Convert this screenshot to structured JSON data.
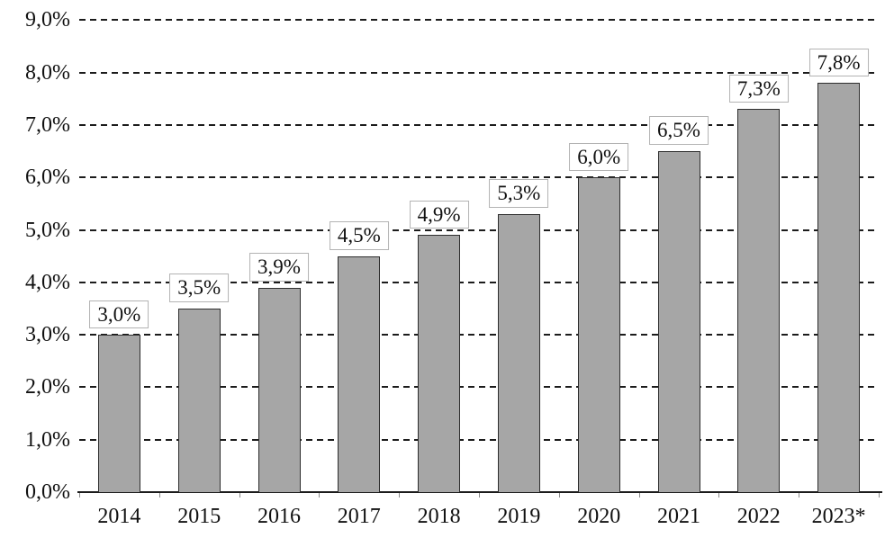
{
  "chart_data": {
    "type": "bar",
    "title": "",
    "xlabel": "",
    "ylabel": "",
    "categories": [
      "2014",
      "2015",
      "2016",
      "2017",
      "2018",
      "2019",
      "2020",
      "2021",
      "2022",
      "2023*"
    ],
    "values": [
      3.0,
      3.5,
      3.9,
      4.5,
      4.9,
      5.3,
      6.0,
      6.5,
      7.3,
      7.8
    ],
    "value_labels": [
      "3,0%",
      "3,5%",
      "3,9%",
      "4,5%",
      "4,9%",
      "5,3%",
      "6,0%",
      "6,5%",
      "7,3%",
      "7,8%"
    ],
    "y_tick_labels": [
      "0,0%",
      "1,0%",
      "2,0%",
      "3,0%",
      "4,0%",
      "5,0%",
      "6,0%",
      "7,0%",
      "8,0%",
      "9,0%"
    ],
    "ylim": [
      0,
      9
    ],
    "grid": "horizontal-dashed",
    "legend": "none",
    "colors": {
      "bar_fill": "#a6a6a6",
      "bar_border": "#2e2e2e",
      "gridline": "#1c1c1c",
      "axis_line": "#1c1c1c",
      "label_box_bg": "#ffffff",
      "label_box_border": "#b3b3b3",
      "text": "#111111"
    }
  }
}
